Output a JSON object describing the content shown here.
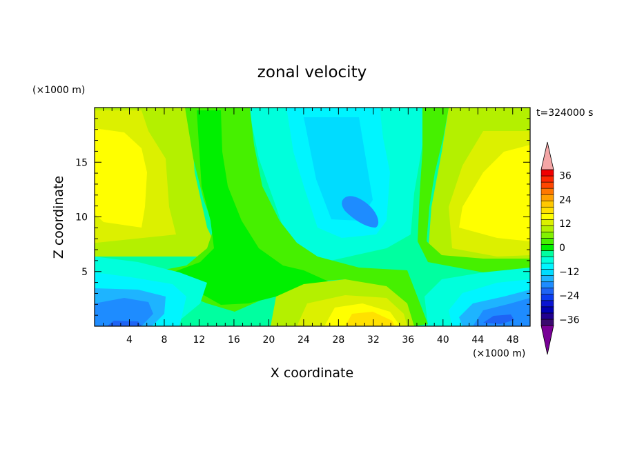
{
  "chart_data": {
    "type": "heatmap",
    "title": "zonal velocity",
    "xlabel": "X coordinate",
    "ylabel": "Z coordinate",
    "x_units": "(×1000 m)",
    "y_units": "(×1000 m)",
    "time_label": "t=324000 s",
    "xlim": [
      0,
      50
    ],
    "ylim": [
      0,
      20
    ],
    "x_ticks": [
      4,
      8,
      12,
      16,
      20,
      24,
      28,
      32,
      36,
      40,
      44,
      48
    ],
    "y_ticks": [
      5,
      10,
      15
    ],
    "colorbar": {
      "levels": [
        -42,
        -39,
        -36,
        -33,
        -30,
        -27,
        -24,
        -21,
        -18,
        -15,
        -12,
        -9,
        -6,
        -3,
        0,
        3,
        6,
        9,
        12,
        15,
        18,
        21,
        24,
        27,
        30,
        33,
        36,
        39,
        42
      ],
      "tick_labels": [
        36,
        24,
        12,
        0,
        -12,
        -24,
        -36
      ],
      "colors": [
        "#3a0a6e",
        "#200090",
        "#0000b4",
        "#0a14d2",
        "#0a3cf0",
        "#1e64f5",
        "#1e8cff",
        "#1eb4ff",
        "#00dcff",
        "#00f5ff",
        "#00ffdc",
        "#00ffa0",
        "#00f000",
        "#46f000",
        "#82f000",
        "#b4f000",
        "#dcf000",
        "#ffff00",
        "#ffe100",
        "#ffc800",
        "#ffa000",
        "#ff7800",
        "#ff4600",
        "#ff2800",
        "#f00000"
      ],
      "under_color": "#780096",
      "over_color": "#f4a6a6"
    },
    "grid": false,
    "approx_field_points": [
      {
        "x": 1,
        "z": 1,
        "u": -20
      },
      {
        "x": 4,
        "z": 2,
        "u": -18
      },
      {
        "x": 8,
        "z": 3,
        "u": -13
      },
      {
        "x": 3,
        "z": 15,
        "u": 12
      },
      {
        "x": 4,
        "z": 9,
        "u": 10
      },
      {
        "x": 10,
        "z": 15,
        "u": 6
      },
      {
        "x": 14,
        "z": 12,
        "u": 1
      },
      {
        "x": 16,
        "z": 6,
        "u": 0
      },
      {
        "x": 22,
        "z": 4,
        "u": 1
      },
      {
        "x": 29,
        "z": 17,
        "u": -11
      },
      {
        "x": 30,
        "z": 11,
        "u": -16
      },
      {
        "x": 27,
        "z": 7,
        "u": -8
      },
      {
        "x": 30,
        "z": 1,
        "u": 13
      },
      {
        "x": 34,
        "z": 2,
        "u": 9
      },
      {
        "x": 38,
        "z": 10,
        "u": 0
      },
      {
        "x": 46,
        "z": 15,
        "u": 12
      },
      {
        "x": 47,
        "z": 9,
        "u": 11
      },
      {
        "x": 44,
        "z": 5,
        "u": -4
      },
      {
        "x": 46,
        "z": 1,
        "u": -20
      },
      {
        "x": 42,
        "z": 2,
        "u": -14
      }
    ]
  }
}
